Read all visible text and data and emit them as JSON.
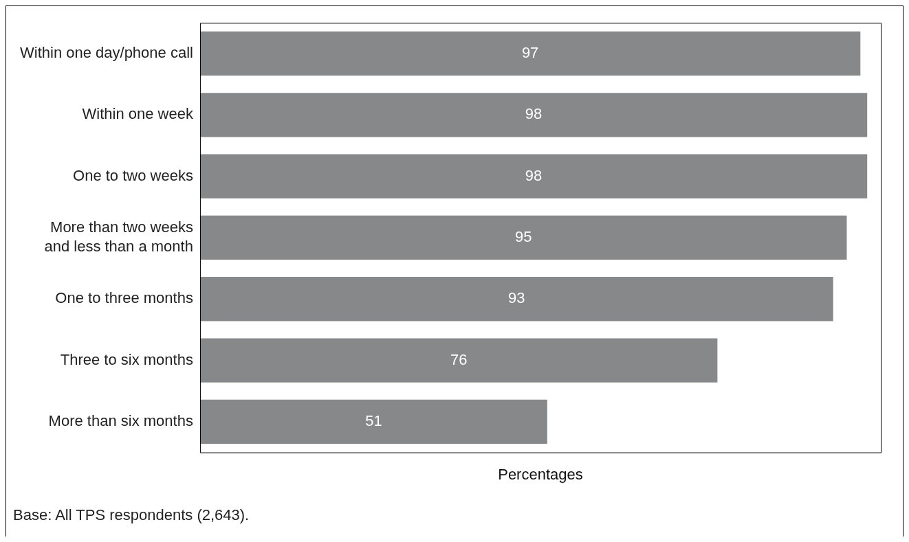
{
  "chart_data": {
    "type": "bar",
    "orientation": "horizontal",
    "xlabel": "Percentages",
    "categories": [
      "Within one day/phone call",
      "Within one week",
      "One to two weeks",
      "More than two weeks and less than a month",
      "One to three months",
      "Three to six months",
      "More than six months"
    ],
    "values": [
      97,
      98,
      98,
      95,
      93,
      76,
      51
    ],
    "color": "#87888a",
    "xlim": [
      0,
      100
    ],
    "tick_labels": "y",
    "grid": false,
    "legend": false,
    "data_labels": true,
    "annotations": [
      "Base: All TPS respondents (2,643)."
    ]
  }
}
